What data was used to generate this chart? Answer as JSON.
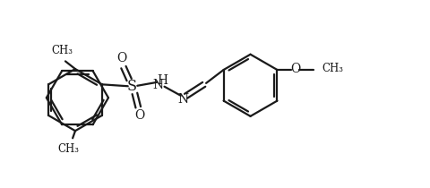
{
  "bg_color": "#ffffff",
  "line_color": "#1a1a1a",
  "line_width": 1.6,
  "font_size": 9.5,
  "figsize": [
    4.8,
    2.1
  ],
  "dpi": 100,
  "xlim": [
    0,
    10
  ],
  "ylim": [
    0,
    4.375
  ]
}
